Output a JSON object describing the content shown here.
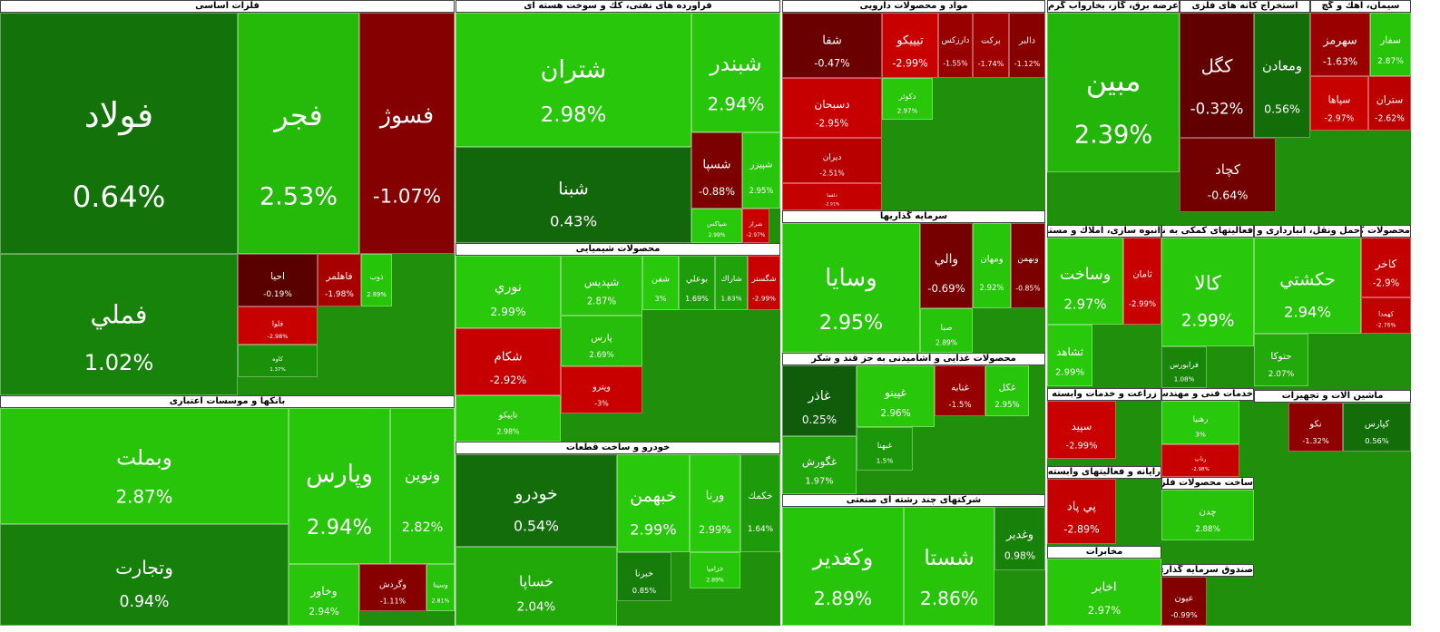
{
  "chart_data": {
    "type": "treemap",
    "groups": [
      {
        "name": "فلزات اساسی",
        "tiles": [
          {
            "name": "فولاد",
            "value": 0.64,
            "value_label": "0.64%"
          },
          {
            "name": "فجر",
            "value": 2.53,
            "value_label": "2.53%"
          },
          {
            "name": "فسوژ",
            "value": -1.07,
            "value_label": "-1.07%"
          },
          {
            "name": "فملي",
            "value": 1.02,
            "value_label": "1.02%"
          },
          {
            "name": "احيا",
            "value": -0.19,
            "value_label": "-0.19%"
          },
          {
            "name": "فاهلمر",
            "value": -1.98,
            "value_label": "-1.98%"
          },
          {
            "name": "فلوا",
            "value": -2.98,
            "value_label": "-2.98%"
          },
          {
            "name": "ذوب",
            "value": 2.89,
            "value_label": "2.89%"
          },
          {
            "name": "كاوه",
            "value": 1.37,
            "value_label": "1.37%"
          }
        ]
      },
      {
        "name": "بانکها و موسسات اعتباری",
        "tiles": [
          {
            "name": "وبملت",
            "value": 2.87,
            "value_label": "2.87%"
          },
          {
            "name": "وتجارت",
            "value": 0.94,
            "value_label": "0.94%"
          },
          {
            "name": "وپارس",
            "value": 2.94,
            "value_label": "2.94%"
          },
          {
            "name": "ونوين",
            "value": 2.82,
            "value_label": "2.82%"
          },
          {
            "name": "وخاور",
            "value": 2.94,
            "value_label": "2.94%"
          },
          {
            "name": "وگردش",
            "value": -1.11,
            "value_label": "-1.11%"
          },
          {
            "name": "وسينا",
            "value": 2.81,
            "value_label": "2.81%"
          }
        ]
      },
      {
        "name": "فراورده های نفتی، کك و سوخت هسته ای",
        "tiles": [
          {
            "name": "شتران",
            "value": 2.98,
            "value_label": "2.98%"
          },
          {
            "name": "شبنا",
            "value": 0.43,
            "value_label": "0.43%"
          },
          {
            "name": "شبندر",
            "value": 2.94,
            "value_label": "2.94%"
          },
          {
            "name": "شسپا",
            "value": -0.88,
            "value_label": "-0.88%"
          },
          {
            "name": "شپيزر",
            "value": 2.95,
            "value_label": "2.95%"
          },
          {
            "name": "شپاكس",
            "value": 2.99,
            "value_label": "2.99%"
          },
          {
            "name": "شراز",
            "value": -2.97,
            "value_label": "-2.97%"
          }
        ]
      },
      {
        "name": "محصولات شیمیایی",
        "tiles": [
          {
            "name": "نوري",
            "value": 2.99,
            "value_label": "2.99%"
          },
          {
            "name": "شكام",
            "value": -2.92,
            "value_label": "-2.92%"
          },
          {
            "name": "تاپيكو",
            "value": 2.98,
            "value_label": "2.98%"
          },
          {
            "name": "شپديس",
            "value": 2.87,
            "value_label": "2.87%"
          },
          {
            "name": "پارس",
            "value": 2.69,
            "value_label": "2.69%"
          },
          {
            "name": "وپترو",
            "value": -3,
            "value_label": "-3%"
          },
          {
            "name": "شفن",
            "value": 3,
            "value_label": "3%"
          },
          {
            "name": "بوعلي",
            "value": 1.69,
            "value_label": "1.69%"
          },
          {
            "name": "شاراك",
            "value": 1.83,
            "value_label": "1.83%"
          },
          {
            "name": "شگستر",
            "value": -2.99,
            "value_label": "-2.99%"
          }
        ]
      },
      {
        "name": "خودرو و ساخت قطعات",
        "tiles": [
          {
            "name": "خودرو",
            "value": 0.54,
            "value_label": "0.54%"
          },
          {
            "name": "خساپا",
            "value": 2.04,
            "value_label": "2.04%"
          },
          {
            "name": "خبهمن",
            "value": 2.99,
            "value_label": "2.99%"
          },
          {
            "name": "ورنا",
            "value": 2.99,
            "value_label": "2.99%"
          },
          {
            "name": "خكمك",
            "value": 1.64,
            "value_label": "1.64%"
          },
          {
            "name": "خبرنا",
            "value": 0.85,
            "value_label": "0.85%"
          },
          {
            "name": "خزاميا",
            "value": 2.89,
            "value_label": "2.89%"
          }
        ]
      },
      {
        "name": "مواد و محصولات دارویی",
        "tiles": [
          {
            "name": "شفا",
            "value": -0.47,
            "value_label": "-0.47%"
          },
          {
            "name": "تيپيكو",
            "value": -2.99,
            "value_label": "-2.99%"
          },
          {
            "name": "دارزكس",
            "value": -1.55,
            "value_label": "-1.55%"
          },
          {
            "name": "بركت",
            "value": -1.74,
            "value_label": "-1.74%"
          },
          {
            "name": "دالبر",
            "value": -1.12,
            "value_label": "-1.12%"
          },
          {
            "name": "دسبحان",
            "value": -2.95,
            "value_label": "-2.95%"
          },
          {
            "name": "ديران",
            "value": -2.51,
            "value_label": "-2.51%"
          },
          {
            "name": "دكوثر",
            "value": 2.97,
            "value_label": "2.97%"
          },
          {
            "name": "دلقما",
            "value": -2.91,
            "value_label": "-2.91%"
          }
        ]
      },
      {
        "name": "سرمایه گذاریها",
        "tiles": [
          {
            "name": "وسايا",
            "value": 2.95,
            "value_label": "2.95%"
          },
          {
            "name": "والي",
            "value": -0.69,
            "value_label": "-0.69%"
          },
          {
            "name": "ومهان",
            "value": 2.92,
            "value_label": "2.92%"
          },
          {
            "name": "وبهمن",
            "value": -0.85,
            "value_label": "-0.85%"
          },
          {
            "name": "صبا",
            "value": 2.89,
            "value_label": "2.89%"
          }
        ]
      },
      {
        "name": "محصولات غذایی و آشامیدنی به جز قند و شکر",
        "tiles": [
          {
            "name": "غاذر",
            "value": 0.25,
            "value_label": "0.25%"
          },
          {
            "name": "غگورش",
            "value": 1.97,
            "value_label": "1.97%"
          },
          {
            "name": "غپينو",
            "value": 2.96,
            "value_label": "2.96%"
          },
          {
            "name": "غبهنا",
            "value": 1.5,
            "value_label": "1.5%"
          },
          {
            "name": "غنابه",
            "value": -1.5,
            "value_label": "-1.5%"
          },
          {
            "name": "غكل",
            "value": 2.95,
            "value_label": "2.95%"
          }
        ]
      },
      {
        "name": "شرکتهای چند رشته ای صنعتی",
        "tiles": [
          {
            "name": "وكغدير",
            "value": 2.89,
            "value_label": "2.89%"
          },
          {
            "name": "شستا",
            "value": 2.86,
            "value_label": "2.86%"
          },
          {
            "name": "وغدير",
            "value": 0.98,
            "value_label": "0.98%"
          }
        ]
      },
      {
        "name": "عرضه برق، گاز، بخاروآب گرم",
        "tiles": [
          {
            "name": "مبين",
            "value": 2.39,
            "value_label": "2.39%"
          }
        ]
      },
      {
        "name": "استخراج کانه های فلزی",
        "tiles": [
          {
            "name": "كگل",
            "value": -0.32,
            "value_label": "-0.32%"
          },
          {
            "name": "ومعادن",
            "value": 0.56,
            "value_label": "0.56%"
          },
          {
            "name": "كچاد",
            "value": -0.64,
            "value_label": "-0.64%"
          }
        ]
      },
      {
        "name": "سیمان، آهك و گچ",
        "tiles": [
          {
            "name": "سهرمز",
            "value": -1.63,
            "value_label": "-1.63%"
          },
          {
            "name": "سفار",
            "value": 2.87,
            "value_label": "2.87%"
          },
          {
            "name": "سپاها",
            "value": -2.97,
            "value_label": "-2.97%"
          },
          {
            "name": "ستران",
            "value": -2.62,
            "value_label": "-2.62%"
          }
        ]
      },
      {
        "name": "انبوه سازی، املاك و مستغلات",
        "tiles": [
          {
            "name": "وساخت",
            "value": 2.97,
            "value_label": "2.97%"
          },
          {
            "name": "ثامان",
            "value": -2.99,
            "value_label": "-2.99%"
          },
          {
            "name": "ثشاهد",
            "value": 2.99,
            "value_label": "2.99%"
          }
        ]
      },
      {
        "name": "فعالیتهای کمکی به نهادهای مالی واسط",
        "tiles": [
          {
            "name": "كالا",
            "value": 2.99,
            "value_label": "2.99%"
          },
          {
            "name": "فرابورس",
            "value": 1.08,
            "value_label": "1.08%"
          }
        ]
      },
      {
        "name": "حمل ونقل، انبارداری و ارتباطات",
        "tiles": [
          {
            "name": "حكشتي",
            "value": 2.94,
            "value_label": "2.94%"
          },
          {
            "name": "حتوكا",
            "value": 2.07,
            "value_label": "2.07%"
          }
        ]
      },
      {
        "name": "محصولات کانی غیرفلزی",
        "tiles": [
          {
            "name": "كاخر",
            "value": -2.9,
            "value_label": "-2.9%"
          },
          {
            "name": "كهمدا",
            "value": -2.76,
            "value_label": "-2.76%"
          }
        ]
      },
      {
        "name": "زراعت و خدمات وابسته",
        "tiles": [
          {
            "name": "سپيد",
            "value": -2.99,
            "value_label": "-2.99%"
          }
        ]
      },
      {
        "name": "رایانه و فعالیتهای وابسته به آن",
        "tiles": [
          {
            "name": "پي پاد",
            "value": -2.89,
            "value_label": "-2.89%"
          }
        ]
      },
      {
        "name": "مخابرات",
        "tiles": [
          {
            "name": "اخابر",
            "value": 2.97,
            "value_label": "2.97%"
          }
        ]
      },
      {
        "name": "خدمات فنی و مهندسی",
        "tiles": [
          {
            "name": "رهنيا",
            "value": 3,
            "value_label": "3%"
          },
          {
            "name": "رتاپ",
            "value": -2.98,
            "value_label": "-2.98%"
          }
        ]
      },
      {
        "name": "ساخت محصولات فلزی",
        "tiles": [
          {
            "name": "چدن",
            "value": 2.88,
            "value_label": "2.88%"
          }
        ]
      },
      {
        "name": "صندوق سرمایه گذاری قابل معامله",
        "tiles": [
          {
            "name": "عيون",
            "value": -0.99,
            "value_label": "-0.99%"
          }
        ]
      },
      {
        "name": "ماشین آلات و تجهیزات",
        "tiles": [
          {
            "name": "نكو",
            "value": -1.32,
            "value_label": "-1.32%"
          },
          {
            "name": "كپارس",
            "value": 0.56,
            "value_label": "0.56%"
          }
        ]
      }
    ]
  }
}
